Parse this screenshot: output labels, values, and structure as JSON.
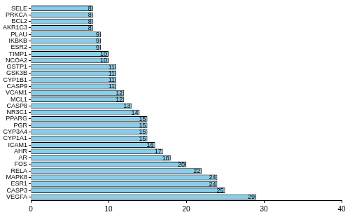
{
  "chart_data": {
    "type": "bar",
    "orientation": "horizontal",
    "categories": [
      "SELE",
      "PRKCA",
      "BCL2",
      "AKR1C3",
      "PLAU",
      "IKBKB",
      "ESR2",
      "TIMP1",
      "NCOA2",
      "GSTP1",
      "GSK3B",
      "CYP1B1",
      "CASP9",
      "VCAM1",
      "MCL1",
      "CASP8",
      "NR3C1",
      "PPARG",
      "PGR",
      "CYP3A4",
      "CYP1A1",
      "ICAM1",
      "AHR",
      "AR",
      "FOS",
      "RELA",
      "MAPK8",
      "ESR1",
      "CASP3",
      "VEGFA"
    ],
    "values": [
      8,
      8,
      8,
      8,
      9,
      9,
      9,
      10,
      10,
      11,
      11,
      11,
      11,
      12,
      12,
      13,
      14,
      15,
      15,
      15,
      15,
      16,
      17,
      18,
      20,
      22,
      24,
      24,
      25,
      29
    ],
    "color": "#87ceeb",
    "xlim": [
      0,
      40
    ],
    "xticks": [
      0,
      10,
      20,
      30,
      40
    ],
    "grid": false,
    "data_labels": true
  }
}
